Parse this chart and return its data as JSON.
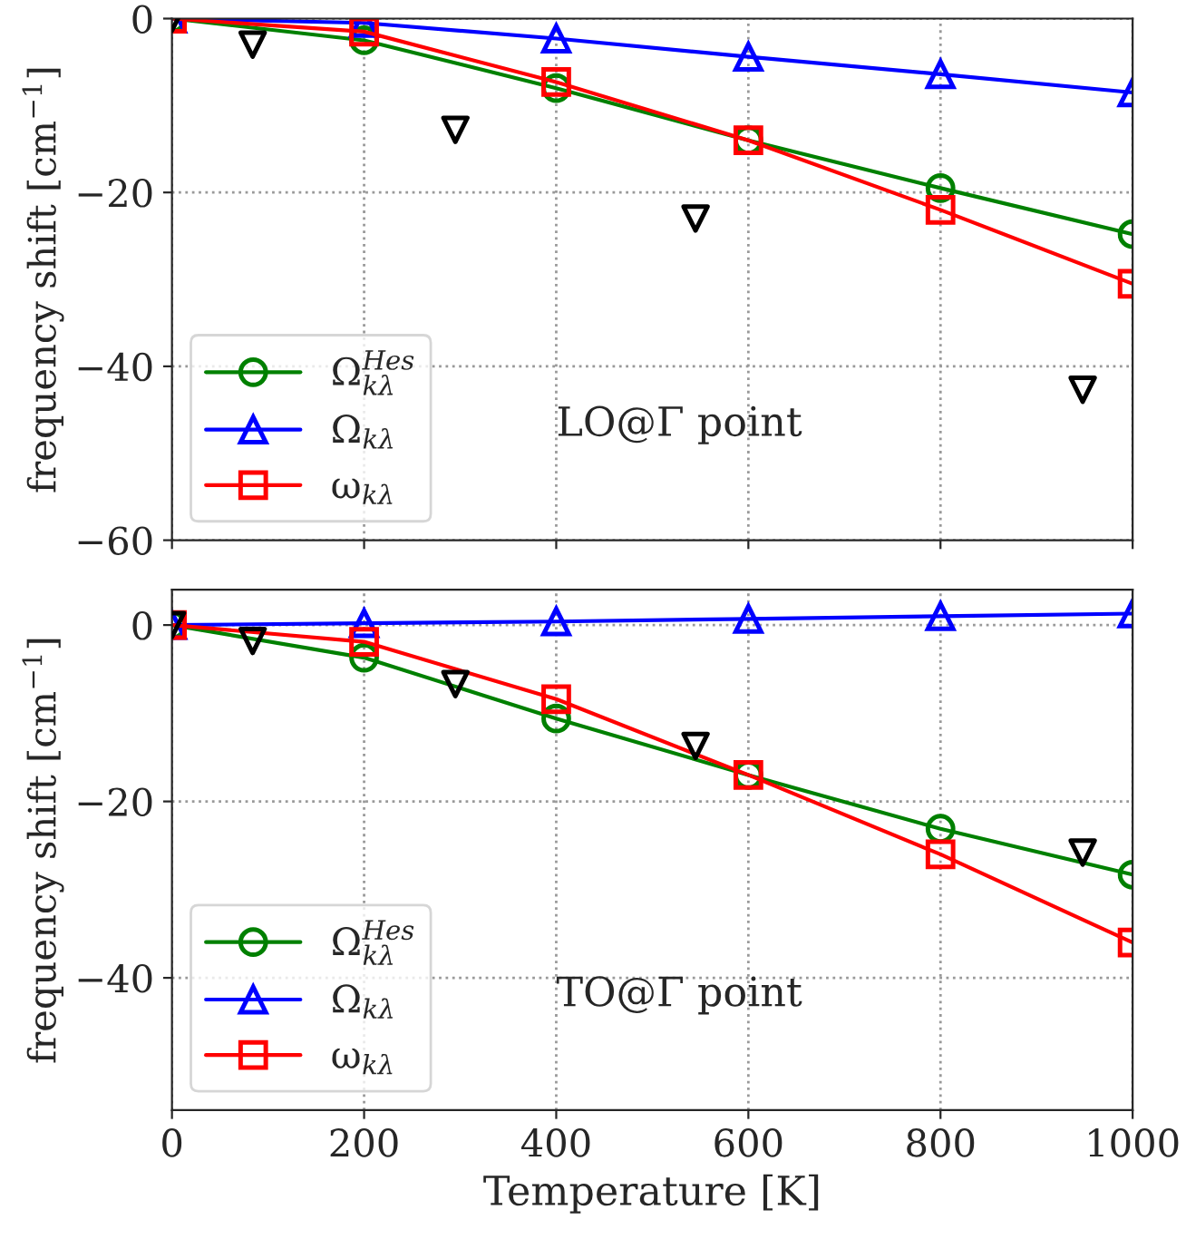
{
  "chart_data": [
    {
      "type": "line",
      "ylabel": "frequency shift [cm$^{−1}$]",
      "x": [
        0,
        200,
        400,
        600,
        800,
        1000
      ],
      "xlim": [
        0,
        1000
      ],
      "xticks": [
        0,
        200,
        400,
        600,
        800,
        1000
      ],
      "ylim": [
        -60,
        0
      ],
      "yticks": [
        {
          "value": -60,
          "label": "−60"
        },
        {
          "value": -40,
          "label": "−40"
        },
        {
          "value": -20,
          "label": "−20"
        },
        0
      ],
      "tick_labels": "y",
      "grid": true,
      "legend": "bottom left",
      "line_style": "solid",
      "annotations": [
        "LO@Γ point"
      ],
      "series": [
        {
          "name": "Ω$^{Hes}$$_{kλ}$",
          "color": "#008000",
          "marker": "circle",
          "values": [
            0,
            -2.5,
            -8,
            -14,
            -19.5,
            -24.8
          ]
        },
        {
          "name": "Ω$_{kλ}$",
          "color": "#0000ff",
          "marker": "triangle",
          "values": [
            0,
            -0.5,
            -2.3,
            -4.4,
            -6.4,
            -8.5
          ]
        },
        {
          "name": "ω$_{kλ}$",
          "color": "#ff0000",
          "marker": "square",
          "values": [
            0,
            -1.5,
            -7.3,
            -14,
            -22,
            -30.5
          ]
        },
        {
          "type": "scatter",
          "color": "#000000",
          "marker": "triangle_down",
          "x": [
            0,
            84,
            295,
            545,
            948
          ],
          "values": [
            0,
            -3,
            -12.8,
            -23,
            -42.7
          ]
        }
      ]
    },
    {
      "type": "line",
      "xlabel": "Temperature [K]",
      "ylabel": "frequency shift [cm$^{−1}$]",
      "x": [
        0,
        200,
        400,
        600,
        800,
        1000
      ],
      "xlim": [
        0,
        1000
      ],
      "xticks": [
        0,
        200,
        400,
        600,
        800,
        1000
      ],
      "ylim": [
        -55,
        4
      ],
      "yticks": [
        {
          "value": -40,
          "label": "−40"
        },
        {
          "value": -20,
          "label": "−20"
        },
        0
      ],
      "grid": true,
      "legend": "bottom left",
      "line_style": "solid",
      "annotations": [
        "TO@Γ point"
      ],
      "series": [
        {
          "name": "Ω$^{Hes}$$_{kλ}$",
          "color": "#008000",
          "marker": "circle",
          "values": [
            0,
            -3.7,
            -10.6,
            -17,
            -23.1,
            -28.3
          ]
        },
        {
          "name": "Ω$_{kλ}$",
          "color": "#0000ff",
          "marker": "triangle",
          "values": [
            0,
            0.2,
            0.4,
            0.7,
            1.0,
            1.3
          ]
        },
        {
          "name": "ω$_{kλ}$",
          "color": "#ff0000",
          "marker": "square",
          "values": [
            0,
            -1.9,
            -8.4,
            -17,
            -26,
            -36
          ]
        },
        {
          "type": "scatter",
          "color": "#000000",
          "marker": "triangle_down",
          "x": [
            0,
            84,
            295,
            545,
            948
          ],
          "values": [
            0,
            -1.8,
            -6.7,
            -13.7,
            -25.8
          ]
        }
      ]
    }
  ]
}
